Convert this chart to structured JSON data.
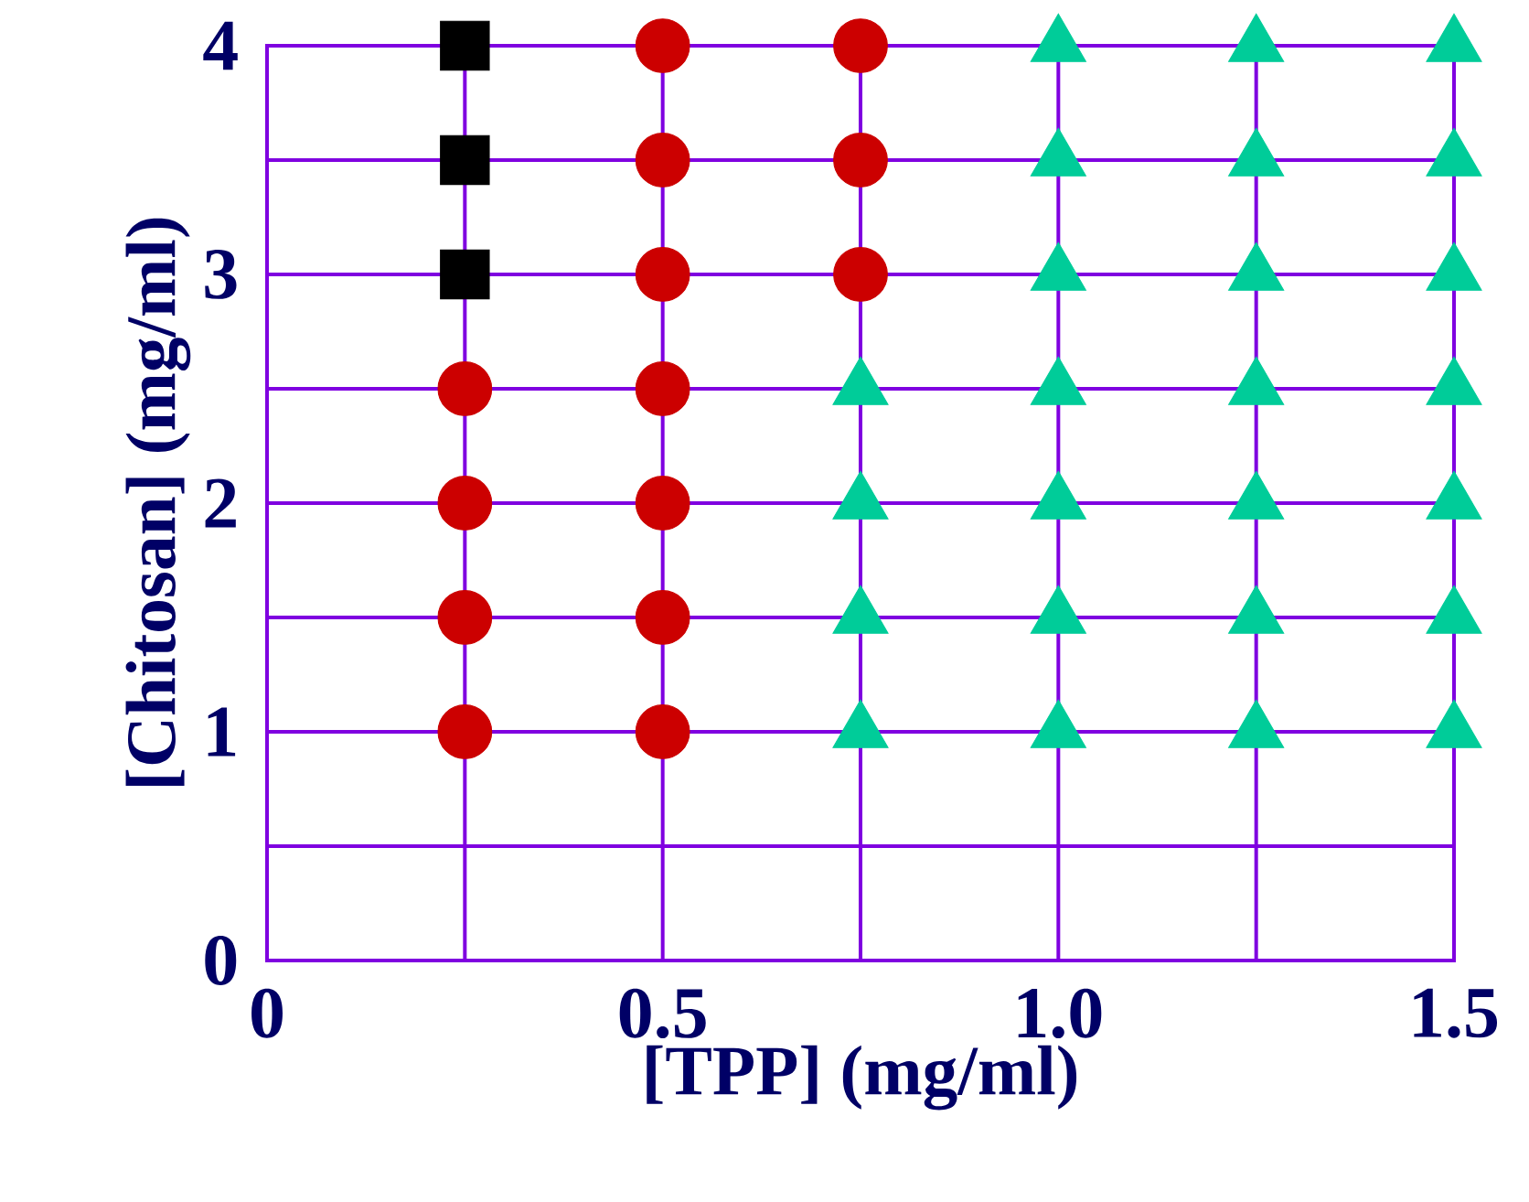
{
  "chart_data": {
    "type": "scatter",
    "xlabel": "[TPP] (mg/ml)",
    "ylabel": "[Chitosan] (mg/ml)",
    "xlim": [
      0,
      1.5
    ],
    "ylim": [
      0,
      4
    ],
    "xticks": [
      0,
      {
        "value": 0.25,
        "label": null
      },
      0.5,
      {
        "value": 0.75,
        "label": null
      },
      {
        "value": 1,
        "label": "1.0"
      },
      {
        "value": 1.25,
        "label": null
      },
      1.5
    ],
    "yticks": [
      0,
      {
        "value": 0.5,
        "label": null
      },
      1,
      {
        "value": 1.5,
        "label": null
      },
      2,
      {
        "value": 2.5,
        "label": null
      },
      3,
      {
        "value": 3.5,
        "label": null
      },
      4
    ],
    "grid": true,
    "series": [
      {
        "color": "#000000",
        "marker": "square",
        "x": [
          0.25,
          0.25,
          0.25
        ],
        "values": [
          3,
          3.5,
          4
        ]
      },
      {
        "color": "#cc0000",
        "marker": "circle",
        "x": [
          0.25,
          0.25,
          0.25,
          0.25,
          0.5,
          0.5,
          0.5,
          0.5,
          0.5,
          0.5,
          0.5,
          0.75,
          0.75,
          0.75
        ],
        "values": [
          1,
          1.5,
          2,
          2.5,
          1,
          1.5,
          2,
          2.5,
          3,
          3.5,
          4,
          3,
          3.5,
          4
        ]
      },
      {
        "color": "#00cc99",
        "marker": "triangle",
        "x": [
          0.75,
          0.75,
          0.75,
          0.75,
          1,
          1,
          1,
          1,
          1,
          1,
          1,
          1.25,
          1.25,
          1.25,
          1.25,
          1.25,
          1.25,
          1.25,
          1.5,
          1.5,
          1.5,
          1.5,
          1.5,
          1.5,
          1.5
        ],
        "values": [
          1,
          1.5,
          2,
          2.5,
          1,
          1.5,
          2,
          2.5,
          3,
          3.5,
          4,
          1,
          1.5,
          2,
          2.5,
          3,
          3.5,
          4,
          1,
          1.5,
          2,
          2.5,
          3,
          3.5,
          4
        ]
      }
    ]
  }
}
